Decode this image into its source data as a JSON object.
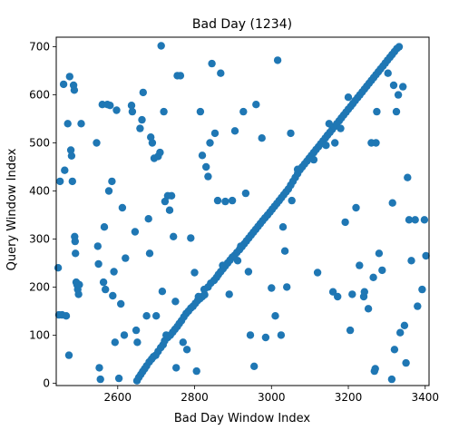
{
  "chart_data": {
    "type": "scatter",
    "title": "Bad Day (1234)",
    "xlabel": "Bad Day Window Index",
    "ylabel": "Query Window Index",
    "xlim": [
      2440,
      3410
    ],
    "ylim": [
      -5,
      720
    ],
    "xticks": [
      2600,
      2800,
      3000,
      3200,
      3400
    ],
    "yticks": [
      0,
      100,
      200,
      300,
      400,
      500,
      600,
      700
    ],
    "grid": false,
    "marker_color": "#1f77b4",
    "points": [
      [
        2650,
        5
      ],
      [
        2655,
        12
      ],
      [
        2660,
        18
      ],
      [
        2665,
        24
      ],
      [
        2670,
        30
      ],
      [
        2675,
        36
      ],
      [
        2682,
        44
      ],
      [
        2688,
        50
      ],
      [
        2693,
        55
      ],
      [
        2699,
        58
      ],
      [
        2705,
        66
      ],
      [
        2712,
        74
      ],
      [
        2718,
        80
      ],
      [
        2722,
        88
      ],
      [
        2730,
        95
      ],
      [
        2737,
        100
      ],
      [
        2743,
        106
      ],
      [
        2749,
        112
      ],
      [
        2755,
        118
      ],
      [
        2760,
        124
      ],
      [
        2766,
        130
      ],
      [
        2772,
        138
      ],
      [
        2778,
        145
      ],
      [
        2784,
        150
      ],
      [
        2790,
        156
      ],
      [
        2796,
        160
      ],
      [
        2802,
        166
      ],
      [
        2808,
        172
      ],
      [
        2814,
        176
      ],
      [
        2820,
        180
      ],
      [
        2826,
        184
      ],
      [
        2835,
        200
      ],
      [
        2842,
        208
      ],
      [
        2851,
        214
      ],
      [
        2857,
        220
      ],
      [
        2862,
        226
      ],
      [
        2868,
        232
      ],
      [
        2874,
        238
      ],
      [
        2880,
        244
      ],
      [
        2886,
        250
      ],
      [
        2892,
        256
      ],
      [
        2898,
        262
      ],
      [
        2904,
        266
      ],
      [
        2910,
        272
      ],
      [
        2917,
        278
      ],
      [
        2923,
        284
      ],
      [
        2929,
        290
      ],
      [
        2935,
        296
      ],
      [
        2941,
        302
      ],
      [
        2947,
        308
      ],
      [
        2953,
        314
      ],
      [
        2959,
        320
      ],
      [
        2965,
        326
      ],
      [
        2971,
        332
      ],
      [
        2977,
        338
      ],
      [
        2983,
        344
      ],
      [
        2990,
        350
      ],
      [
        2996,
        356
      ],
      [
        3002,
        362
      ],
      [
        3008,
        368
      ],
      [
        3014,
        374
      ],
      [
        3020,
        380
      ],
      [
        3026,
        386
      ],
      [
        3032,
        392
      ],
      [
        3038,
        398
      ],
      [
        3044,
        404
      ],
      [
        3050,
        412
      ],
      [
        3056,
        420
      ],
      [
        3062,
        428
      ],
      [
        3068,
        436
      ],
      [
        3074,
        444
      ],
      [
        3080,
        450
      ],
      [
        3086,
        456
      ],
      [
        3092,
        462
      ],
      [
        3098,
        468
      ],
      [
        3104,
        474
      ],
      [
        3110,
        480
      ],
      [
        3116,
        486
      ],
      [
        3122,
        492
      ],
      [
        3128,
        498
      ],
      [
        3134,
        504
      ],
      [
        3140,
        510
      ],
      [
        3146,
        516
      ],
      [
        3152,
        522
      ],
      [
        3158,
        528
      ],
      [
        3164,
        534
      ],
      [
        3170,
        540
      ],
      [
        3176,
        546
      ],
      [
        3182,
        552
      ],
      [
        3188,
        558
      ],
      [
        3194,
        564
      ],
      [
        3200,
        570
      ],
      [
        3206,
        576
      ],
      [
        3212,
        582
      ],
      [
        3218,
        588
      ],
      [
        3224,
        594
      ],
      [
        3230,
        600
      ],
      [
        3236,
        606
      ],
      [
        3242,
        612
      ],
      [
        3248,
        618
      ],
      [
        3254,
        624
      ],
      [
        3260,
        630
      ],
      [
        3266,
        636
      ],
      [
        3272,
        642
      ],
      [
        3278,
        648
      ],
      [
        3284,
        654
      ],
      [
        3290,
        660
      ],
      [
        3296,
        666
      ],
      [
        3302,
        672
      ],
      [
        3308,
        678
      ],
      [
        3314,
        684
      ],
      [
        3320,
        690
      ],
      [
        3326,
        696
      ],
      [
        3332,
        700
      ],
      [
        2445,
        240
      ],
      [
        2447,
        142
      ],
      [
        2450,
        420
      ],
      [
        2455,
        142
      ],
      [
        2459,
        622
      ],
      [
        2462,
        443
      ],
      [
        2466,
        140
      ],
      [
        2470,
        540
      ],
      [
        2473,
        58
      ],
      [
        2475,
        638
      ],
      [
        2478,
        485
      ],
      [
        2480,
        473
      ],
      [
        2482,
        420
      ],
      [
        2485,
        620
      ],
      [
        2487,
        610
      ],
      [
        2488,
        305
      ],
      [
        2489,
        295
      ],
      [
        2490,
        270
      ],
      [
        2492,
        210
      ],
      [
        2494,
        205
      ],
      [
        2496,
        195
      ],
      [
        2498,
        185
      ],
      [
        2500,
        205
      ],
      [
        2505,
        540
      ],
      [
        2545,
        500
      ],
      [
        2548,
        285
      ],
      [
        2550,
        248
      ],
      [
        2552,
        32
      ],
      [
        2555,
        8
      ],
      [
        2560,
        580
      ],
      [
        2563,
        210
      ],
      [
        2565,
        325
      ],
      [
        2568,
        195
      ],
      [
        2573,
        580
      ],
      [
        2577,
        400
      ],
      [
        2580,
        578
      ],
      [
        2585,
        420
      ],
      [
        2587,
        182
      ],
      [
        2590,
        232
      ],
      [
        2593,
        85
      ],
      [
        2597,
        568
      ],
      [
        2603,
        10
      ],
      [
        2608,
        165
      ],
      [
        2612,
        365
      ],
      [
        2617,
        100
      ],
      [
        2620,
        260
      ],
      [
        2636,
        578
      ],
      [
        2638,
        565
      ],
      [
        2645,
        315
      ],
      [
        2648,
        110
      ],
      [
        2651,
        85
      ],
      [
        2658,
        530
      ],
      [
        2663,
        548
      ],
      [
        2666,
        605
      ],
      [
        2675,
        140
      ],
      [
        2680,
        342
      ],
      [
        2683,
        270
      ],
      [
        2686,
        512
      ],
      [
        2690,
        500
      ],
      [
        2695,
        468
      ],
      [
        2700,
        140
      ],
      [
        2705,
        472
      ],
      [
        2710,
        480
      ],
      [
        2713,
        702
      ],
      [
        2716,
        191
      ],
      [
        2720,
        565
      ],
      [
        2723,
        378
      ],
      [
        2726,
        100
      ],
      [
        2730,
        390
      ],
      [
        2735,
        360
      ],
      [
        2740,
        390
      ],
      [
        2745,
        305
      ],
      [
        2750,
        170
      ],
      [
        2752,
        32
      ],
      [
        2755,
        640
      ],
      [
        2763,
        640
      ],
      [
        2770,
        85
      ],
      [
        2780,
        70
      ],
      [
        2790,
        302
      ],
      [
        2800,
        230
      ],
      [
        2805,
        25
      ],
      [
        2810,
        180
      ],
      [
        2815,
        565
      ],
      [
        2820,
        474
      ],
      [
        2825,
        195
      ],
      [
        2830,
        450
      ],
      [
        2835,
        430
      ],
      [
        2840,
        500
      ],
      [
        2845,
        665
      ],
      [
        2853,
        520
      ],
      [
        2860,
        380
      ],
      [
        2868,
        645
      ],
      [
        2873,
        245
      ],
      [
        2880,
        378
      ],
      [
        2890,
        185
      ],
      [
        2898,
        380
      ],
      [
        2905,
        525
      ],
      [
        2912,
        255
      ],
      [
        2920,
        285
      ],
      [
        2927,
        565
      ],
      [
        2933,
        395
      ],
      [
        2940,
        232
      ],
      [
        2945,
        100
      ],
      [
        2955,
        35
      ],
      [
        2960,
        580
      ],
      [
        2975,
        510
      ],
      [
        2985,
        95
      ],
      [
        3000,
        198
      ],
      [
        3010,
        140
      ],
      [
        3016,
        672
      ],
      [
        3025,
        100
      ],
      [
        3030,
        325
      ],
      [
        3035,
        275
      ],
      [
        3040,
        200
      ],
      [
        3050,
        520
      ],
      [
        3053,
        380
      ],
      [
        3068,
        445
      ],
      [
        3110,
        465
      ],
      [
        3120,
        230
      ],
      [
        3142,
        495
      ],
      [
        3150,
        540
      ],
      [
        3160,
        190
      ],
      [
        3165,
        500
      ],
      [
        3172,
        180
      ],
      [
        3180,
        530
      ],
      [
        3192,
        335
      ],
      [
        3200,
        595
      ],
      [
        3205,
        110
      ],
      [
        3210,
        185
      ],
      [
        3220,
        365
      ],
      [
        3229,
        245
      ],
      [
        3240,
        180
      ],
      [
        3242,
        190
      ],
      [
        3252,
        155
      ],
      [
        3260,
        500
      ],
      [
        3265,
        220
      ],
      [
        3268,
        25
      ],
      [
        3270,
        30
      ],
      [
        3272,
        500
      ],
      [
        3274,
        565
      ],
      [
        3280,
        270
      ],
      [
        3288,
        235
      ],
      [
        3303,
        645
      ],
      [
        3313,
        8
      ],
      [
        3315,
        375
      ],
      [
        3318,
        620
      ],
      [
        3320,
        70
      ],
      [
        3325,
        565
      ],
      [
        3330,
        600
      ],
      [
        3335,
        105
      ],
      [
        3342,
        617
      ],
      [
        3346,
        120
      ],
      [
        3350,
        42
      ],
      [
        3354,
        428
      ],
      [
        3358,
        340
      ],
      [
        3364,
        255
      ],
      [
        3374,
        340
      ],
      [
        3380,
        160
      ],
      [
        3392,
        195
      ],
      [
        3398,
        340
      ],
      [
        3402,
        265
      ]
    ]
  }
}
